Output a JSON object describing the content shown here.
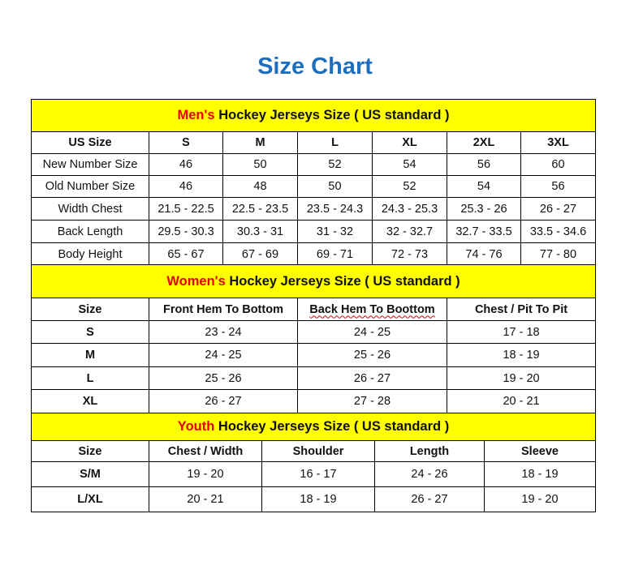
{
  "title": "Size Chart",
  "colors": {
    "title": "#1f6fbf",
    "banner_bg": "#ffff00",
    "accent": "#e60000"
  },
  "men": {
    "banner_accent": "Men's",
    "banner_rest": " Hockey Jerseys Size ( US standard )",
    "headers": [
      "US Size",
      "S",
      "M",
      "L",
      "XL",
      "2XL",
      "3XL"
    ],
    "rows": [
      [
        "New Number Size",
        "46",
        "50",
        "52",
        "54",
        "56",
        "60"
      ],
      [
        "Old Number Size",
        "46",
        "48",
        "50",
        "52",
        "54",
        "56"
      ],
      [
        "Width Chest",
        "21.5 - 22.5",
        "22.5 - 23.5",
        "23.5 - 24.3",
        "24.3 - 25.3",
        "25.3 - 26",
        "26 - 27"
      ],
      [
        "Back Length",
        "29.5 - 30.3",
        "30.3 - 31",
        "31 - 32",
        "32 - 32.7",
        "32.7 - 33.5",
        "33.5 - 34.6"
      ],
      [
        "Body Height",
        "65 - 67",
        "67 - 69",
        "69 - 71",
        "72 - 73",
        "74 - 76",
        "77 - 80"
      ]
    ]
  },
  "women": {
    "banner_accent": "Women's",
    "banner_rest": " Hockey Jerseys Size ( US standard )",
    "headers": [
      "Size",
      "Front Hem To Bottom",
      "Back Hem To Boottom",
      "Chest / Pit To Pit"
    ],
    "rows": [
      [
        "S",
        "23 - 24",
        "24 - 25",
        "17 - 18"
      ],
      [
        "M",
        "24 - 25",
        "25 - 26",
        "18 - 19"
      ],
      [
        "L",
        "25 - 26",
        "26 - 27",
        "19 - 20"
      ],
      [
        "XL",
        "26 - 27",
        "27 - 28",
        "20 - 21"
      ]
    ]
  },
  "youth": {
    "banner_accent": "Youth",
    "banner_rest": " Hockey Jerseys Size ( US standard )",
    "headers": [
      "Size",
      "Chest / Width",
      "Shoulder",
      "Length",
      "Sleeve"
    ],
    "rows": [
      [
        "S/M",
        "19 - 20",
        "16 - 17",
        "24 - 26",
        "18 - 19"
      ],
      [
        "L/XL",
        "20 - 21",
        "18 - 19",
        "26 - 27",
        "19 - 20"
      ]
    ]
  }
}
